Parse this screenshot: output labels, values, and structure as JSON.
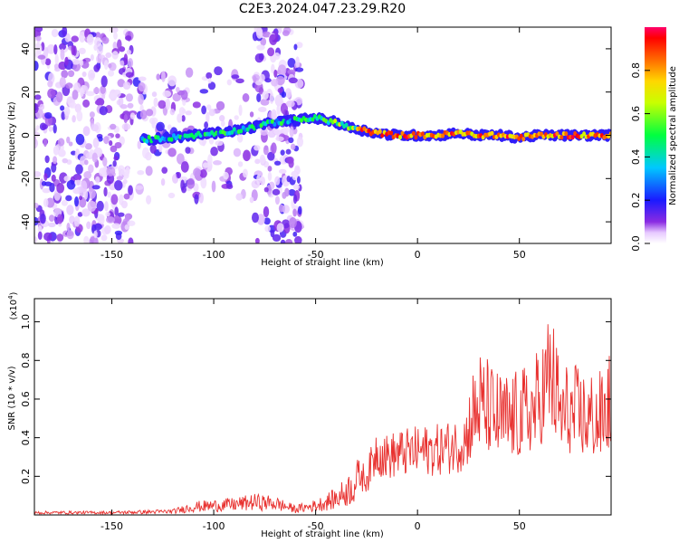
{
  "title": "C2E3.2024.047.23.29.R20",
  "chart_data": [
    {
      "type": "heatmap",
      "xlabel": "Height of straight line (km)",
      "ylabel": "Frequency (Hz)",
      "xlim": [
        -188,
        95
      ],
      "ylim": [
        -50,
        50
      ],
      "xticks": [
        -150,
        -100,
        -50,
        0,
        50
      ],
      "yticks": [
        -40,
        -20,
        0,
        20,
        40
      ],
      "colorbar": {
        "label": "Normalized spectral amplitude",
        "range": [
          0.0,
          1.0
        ],
        "ticks": [
          0.0,
          0.2,
          0.4,
          0.6,
          0.8
        ],
        "colormap": "rainbow"
      },
      "signal_track": {
        "x": [
          -135,
          -120,
          -100,
          -90,
          -80,
          -70,
          -60,
          -50,
          -45,
          -40,
          -35,
          -30,
          -20,
          -10,
          0,
          10,
          20,
          30,
          40,
          50,
          60,
          70,
          80,
          90,
          95
        ],
        "frequency": [
          -2,
          -1,
          1,
          2,
          4,
          6,
          7,
          8,
          7,
          6,
          4,
          3,
          1,
          0,
          0,
          0,
          1,
          0,
          0,
          -1,
          0,
          0,
          0,
          0,
          0
        ]
      },
      "noise_regions": [
        {
          "x": [
            -188,
            -140
          ],
          "frequency": [
            -50,
            50
          ]
        },
        {
          "x": [
            -80,
            -57
          ],
          "frequency": [
            -50,
            50
          ]
        },
        {
          "x": [
            -140,
            -60
          ],
          "frequency": [
            -30,
            30
          ]
        }
      ]
    },
    {
      "type": "line",
      "xlabel": "Height of straight line (km)",
      "ylabel": "SNR (10 * v/v)",
      "yscale_label": "(x10",
      "yscale_exp": "4",
      "xlim": [
        -188,
        95
      ],
      "ylim": [
        0,
        1.12
      ],
      "xticks": [
        -150,
        -100,
        -50,
        0,
        50
      ],
      "yticks": [
        0.2,
        0.4,
        0.6,
        0.8,
        1.0
      ],
      "color": "#e8312f",
      "envelope": {
        "x": [
          -188,
          -150,
          -120,
          -110,
          -100,
          -90,
          -80,
          -70,
          -60,
          -50,
          -40,
          -35,
          -30,
          -25,
          -20,
          -15,
          -10,
          0,
          10,
          20,
          25,
          30,
          40,
          50,
          60,
          65,
          70,
          80,
          90,
          95
        ],
        "y": [
          0.02,
          0.02,
          0.03,
          0.07,
          0.08,
          0.09,
          0.11,
          0.1,
          0.05,
          0.08,
          0.14,
          0.2,
          0.28,
          0.25,
          0.45,
          0.4,
          0.42,
          0.44,
          0.45,
          0.48,
          0.55,
          0.7,
          0.6,
          0.6,
          0.7,
          0.9,
          0.65,
          0.62,
          0.6,
          0.7
        ]
      }
    }
  ]
}
